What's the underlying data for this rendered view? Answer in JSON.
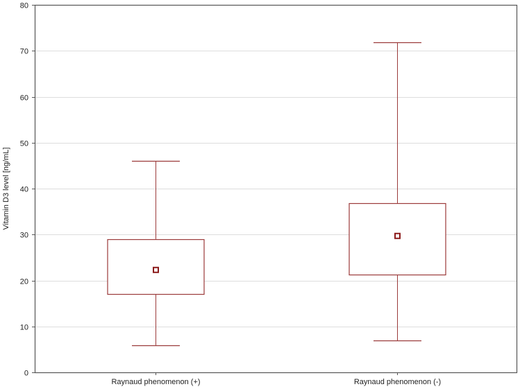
{
  "chart_data": {
    "type": "box",
    "title": "",
    "xlabel": "",
    "ylabel": "Vitamin D3 level [ng/mL]",
    "ylim": [
      0,
      80
    ],
    "yticks": [
      0,
      10,
      20,
      30,
      40,
      50,
      60,
      70,
      80
    ],
    "grid": "horizontal",
    "categories": [
      "Raynaud phenomenon (+)",
      "Raynaud phenomenon (-)"
    ],
    "series": [
      {
        "name": "Raynaud phenomenon (+)",
        "whisker_low": 5.9,
        "box_low": 17.1,
        "center": 22.3,
        "box_high": 29.0,
        "whisker_high": 46.0
      },
      {
        "name": "Raynaud phenomenon (-)",
        "whisker_low": 6.9,
        "box_low": 21.3,
        "center": 29.7,
        "box_high": 36.8,
        "whisker_high": 71.8
      }
    ],
    "colors": {
      "box": "#9b3a3a",
      "marker": "#8b1a1a",
      "grid": "#dddddd",
      "axis": "#555555"
    }
  }
}
